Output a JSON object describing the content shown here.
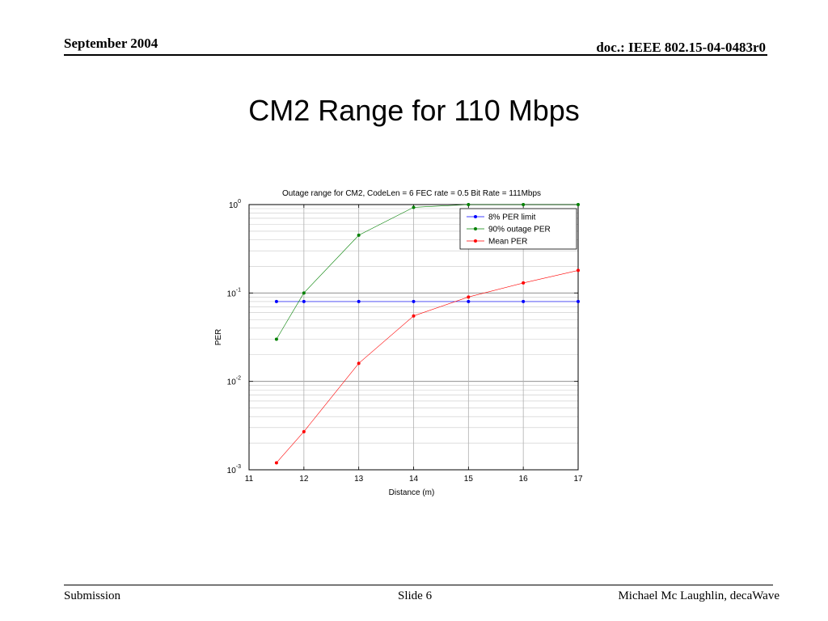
{
  "header": {
    "date": "September 2004",
    "doc": "doc.: IEEE 802.15-04-0483r0"
  },
  "slide": {
    "title": "CM2 Range for 110 Mbps"
  },
  "footer": {
    "left": "Submission",
    "middle": "Slide 6",
    "right": "Michael Mc Laughlin, decaWave"
  },
  "chart_data": {
    "type": "line",
    "title": "Outage range for CM2, CodeLen = 6 FEC rate = 0.5 Bit Rate = 111Mbps",
    "xlabel": "Distance (m)",
    "ylabel": "PER",
    "xlim": [
      11,
      17
    ],
    "ylim": [
      0.001,
      1
    ],
    "yscale": "log",
    "grid": true,
    "legend_position": "top-right",
    "x_ticks": [
      "11",
      "12",
      "13",
      "14",
      "15",
      "16",
      "17"
    ],
    "y_ticks": [
      {
        "base": "10",
        "exp": "0",
        "value": 1
      },
      {
        "base": "10",
        "exp": "-1",
        "value": 0.1
      },
      {
        "base": "10",
        "exp": "-2",
        "value": 0.01
      },
      {
        "base": "10",
        "exp": "-3",
        "value": 0.001
      }
    ],
    "series": [
      {
        "name": "8% PER limit",
        "color": "#0000ff",
        "x": [
          11.5,
          12,
          13,
          14,
          15,
          16,
          17
        ],
        "y": [
          0.08,
          0.08,
          0.08,
          0.08,
          0.08,
          0.08,
          0.08
        ]
      },
      {
        "name": "90% outage PER",
        "color": "#008000",
        "x": [
          11.5,
          12,
          13,
          14,
          15,
          16,
          17
        ],
        "y": [
          0.03,
          0.1,
          0.45,
          0.93,
          1.0,
          1.0,
          1.0
        ]
      },
      {
        "name": "Mean PER",
        "color": "#ff0000",
        "x": [
          11.5,
          12,
          13,
          14,
          15,
          16,
          17
        ],
        "y": [
          0.0012,
          0.0027,
          0.016,
          0.055,
          0.09,
          0.13,
          0.18
        ]
      }
    ]
  }
}
